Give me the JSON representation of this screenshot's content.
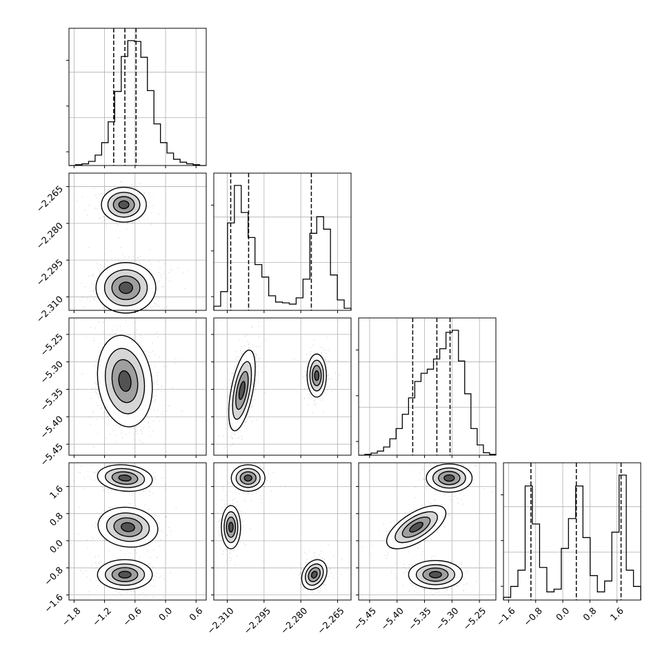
{
  "chart_data": {
    "type": "corner",
    "dimensions": 4,
    "grid": true,
    "axes": [
      {
        "range": [
          -1.9,
          0.8
        ],
        "ticks": [
          "−1.8",
          "−1.2",
          "−0.6",
          "0.0",
          "0.6"
        ],
        "tick_values": [
          -1.8,
          -1.2,
          -0.6,
          0.0,
          0.6
        ]
      },
      {
        "range": [
          -2.3155,
          -2.2595
        ],
        "ticks": [
          "−2.310",
          "−2.295",
          "−2.280",
          "−2.265"
        ],
        "tick_values": [
          -2.31,
          -2.295,
          -2.28,
          -2.265
        ]
      },
      {
        "range": [
          -5.47,
          -5.22
        ],
        "ticks": [
          "−5.45",
          "−5.40",
          "−5.35",
          "−5.30",
          "−5.25"
        ],
        "tick_values": [
          -5.45,
          -5.4,
          -5.35,
          -5.3,
          -5.25
        ]
      },
      {
        "range": [
          -1.75,
          2.3
        ],
        "ticks": [
          "−1.6",
          "−0.8",
          "0.0",
          "0.8",
          "1.6"
        ],
        "tick_values": [
          -1.6,
          -0.8,
          0.0,
          0.8,
          1.6
        ]
      }
    ],
    "histograms": [
      {
        "bins": [
          -1.9,
          0.8
        ],
        "counts": [
          0,
          2,
          4,
          10,
          25,
          55,
          105,
          178,
          262,
          300,
          298,
          260,
          180,
          100,
          55,
          30,
          15,
          8,
          4,
          2,
          0
        ],
        "quantiles": [
          -1.02,
          -0.8,
          -0.58
        ]
      },
      {
        "bins": [
          -2.3155,
          -2.2595
        ],
        "counts": [
          10,
          45,
          210,
          300,
          235,
          175,
          110,
          80,
          35,
          20,
          18,
          15,
          30,
          75,
          185,
          225,
          195,
          85,
          25,
          5
        ],
        "quantiles": [
          -2.3086,
          -2.3013,
          -2.2757
        ]
      },
      {
        "bins": [
          -5.47,
          -5.22
        ],
        "counts": [
          0,
          2,
          5,
          10,
          20,
          40,
          65,
          100,
          140,
          180,
          200,
          210,
          235,
          260,
          300,
          305,
          230,
          150,
          65,
          25,
          6,
          2
        ],
        "quantiles": [
          -5.3715,
          -5.3275,
          -5.3035
        ]
      },
      {
        "bins": [
          -1.75,
          2.3
        ],
        "counts": [
          5,
          25,
          55,
          210,
          140,
          60,
          15,
          20,
          95,
          150,
          210,
          115,
          45,
          15,
          35,
          125,
          230,
          55,
          25
        ],
        "quantiles": [
          -0.94,
          0.4,
          1.72
        ]
      }
    ],
    "pair_modes": [
      {
        "row": 1,
        "col": 0,
        "modes": [
          {
            "x": -0.82,
            "y": -2.2724,
            "sx": 0.18,
            "sy": 0.0029,
            "rho": 0.0,
            "w": 0.35
          },
          {
            "x": -0.78,
            "y": -2.3063,
            "sx": 0.24,
            "sy": 0.0042,
            "rho": 0.0,
            "w": 0.65
          }
        ]
      },
      {
        "row": 2,
        "col": 0,
        "modes": [
          {
            "x": -0.8,
            "y": -5.335,
            "sx": 0.22,
            "sy": 0.034,
            "rho": -0.15,
            "w": 1.0
          }
        ]
      },
      {
        "row": 2,
        "col": 1,
        "modes": [
          {
            "x": -2.304,
            "y": -5.352,
            "sx": 0.0022,
            "sy": 0.03,
            "rho": 0.55,
            "w": 0.6
          },
          {
            "x": -2.2735,
            "y": -5.325,
            "sx": 0.0016,
            "sy": 0.016,
            "rho": 0.0,
            "w": 0.4
          }
        ]
      },
      {
        "row": 3,
        "col": 0,
        "modes": [
          {
            "x": -0.8,
            "y": 1.85,
            "sx": 0.22,
            "sy": 0.16,
            "rho": -0.15,
            "w": 0.34
          },
          {
            "x": -0.74,
            "y": 0.4,
            "sx": 0.24,
            "sy": 0.24,
            "rho": -0.1,
            "w": 0.33
          },
          {
            "x": -0.8,
            "y": -1.0,
            "sx": 0.22,
            "sy": 0.18,
            "rho": 0.0,
            "w": 0.33
          }
        ]
      },
      {
        "row": 3,
        "col": 1,
        "modes": [
          {
            "x": -2.3015,
            "y": 1.85,
            "sx": 0.0028,
            "sy": 0.16,
            "rho": 0.0,
            "w": 0.34
          },
          {
            "x": -2.3085,
            "y": 0.4,
            "sx": 0.0016,
            "sy": 0.26,
            "rho": 0.0,
            "w": 0.33
          },
          {
            "x": -2.2745,
            "y": -1.0,
            "sx": 0.0021,
            "sy": 0.18,
            "rho": 0.25,
            "w": 0.33
          }
        ]
      },
      {
        "row": 3,
        "col": 2,
        "modes": [
          {
            "x": -5.305,
            "y": 1.85,
            "sx": 0.017,
            "sy": 0.17,
            "rho": 0.0,
            "w": 0.34
          },
          {
            "x": -5.365,
            "y": 0.4,
            "sx": 0.022,
            "sy": 0.26,
            "rho": 0.65,
            "w": 0.33
          },
          {
            "x": -5.33,
            "y": -1.0,
            "sx": 0.02,
            "sy": 0.17,
            "rho": 0.0,
            "w": 0.33
          }
        ]
      }
    ]
  }
}
